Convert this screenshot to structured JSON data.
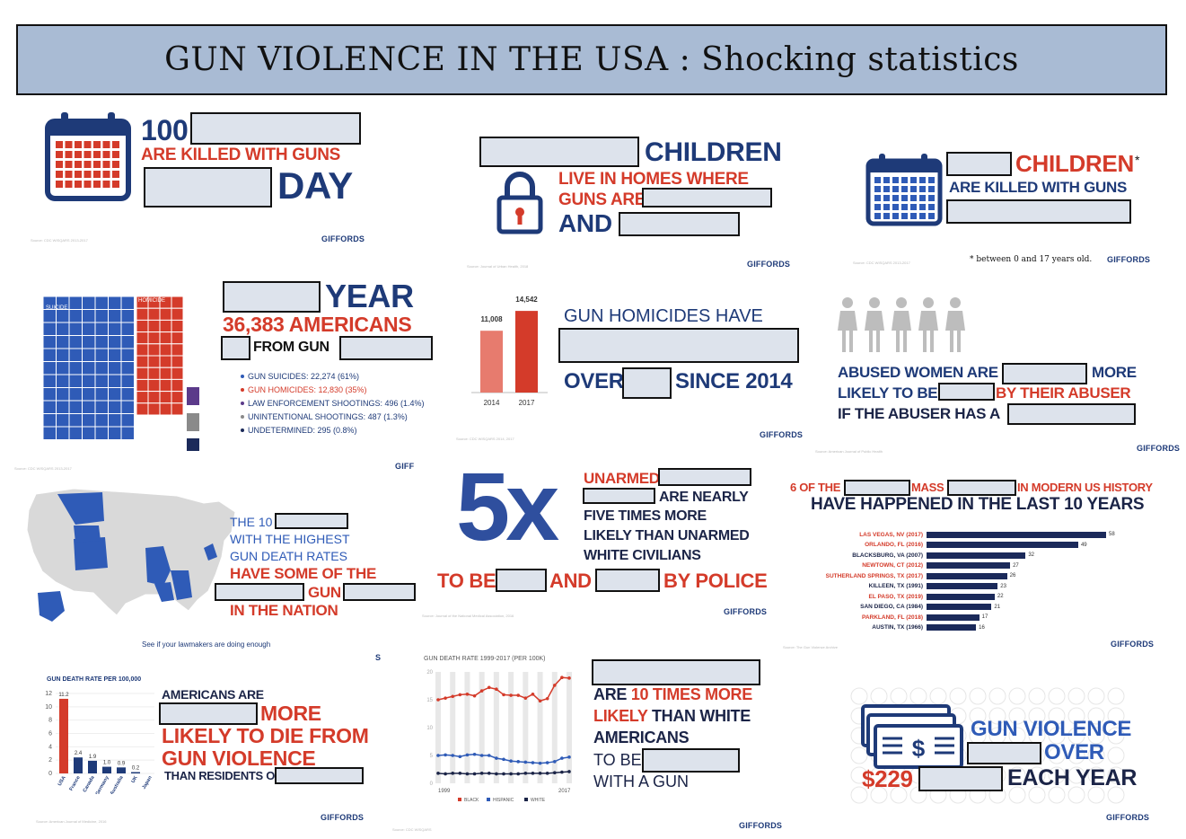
{
  "title": "GUN VIOLENCE IN THE USA : Shocking statistics",
  "brand": "GIFFORDS",
  "brand_cut": "GIFF",
  "colors": {
    "navy": "#1e3a78",
    "red": "#d43b2a",
    "dark": "#1b2447",
    "blank": "#dde3ec",
    "title_bg": "#a9bbd4"
  },
  "panel1": {
    "number": "100",
    "killed": "ARE KILLED WITH GUNS",
    "day": "DAY",
    "source": "Source: CDC WISQARS 2013-2017",
    "icon": "calendar-icon"
  },
  "panel2": {
    "children": "CHILDREN",
    "line1": "LIVE IN HOMES WHERE",
    "line2": "GUNS ARE",
    "and": "AND",
    "source": "Source: Journal of Urban Health, 2018",
    "icon": "padlock-icon"
  },
  "panel3": {
    "children": "CHILDREN",
    "asterisk": "*",
    "killed": "ARE KILLED WITH GUNS",
    "footnote": "* between 0 and 17 years old.",
    "source": "Source: CDC WISQARS 2013-2017",
    "icon": "calendar-icon"
  },
  "panel4": {
    "year": "YEAR",
    "americans": "36,383 AMERICANS",
    "from_gun": "FROM GUN",
    "suicide_label": "SUICIDE",
    "homicide_label": "HOMICIDE",
    "legend": [
      {
        "text": "GUN SUICIDES: 22,274 (61%)",
        "color": "#2f5bb7"
      },
      {
        "text": "GUN HOMICIDES: 12,830 (35%)",
        "color": "#d43b2a"
      },
      {
        "text": "LAW ENFORCEMENT SHOOTINGS: 496 (1.4%)",
        "color": "#5b3a8a"
      },
      {
        "text": "UNINTENTIONAL SHOOTINGS: 487 (1.3%)",
        "color": "#8a8a8a"
      },
      {
        "text": "UNDETERMINED: 295 (0.8%)",
        "color": "#1b2a5a"
      }
    ],
    "source": "Source: CDC WISQARS 2013-2017"
  },
  "panel5": {
    "heading": "GUN HOMICIDES HAVE",
    "over": "OVER",
    "since": "SINCE 2014",
    "source": "Source: CDC WISQARS 2014, 2017",
    "chart_data": {
      "type": "bar",
      "categories": [
        "2014",
        "2017"
      ],
      "values": [
        11008,
        14542
      ],
      "value_labels": [
        "11,008",
        "14,542"
      ]
    }
  },
  "panel6": {
    "line1a": "ABUSED WOMEN ARE",
    "line1b": "MORE",
    "line2a": "LIKELY TO BE",
    "line2b": "BY THEIR ABUSER",
    "line3": "IF THE ABUSER HAS A",
    "source": "Source: American Journal of Public Health",
    "icon": "woman-icon"
  },
  "panel7": {
    "line1": "THE 10",
    "line2": "WITH THE HIGHEST",
    "line3": "GUN DEATH RATES",
    "line4": "HAVE SOME OF THE",
    "gun": "GUN",
    "line6": "IN THE NATION",
    "cta": "See if your lawmakers are doing enough",
    "source": "Source: CDC WISQARS 2013-2017",
    "cut": "S"
  },
  "panel8": {
    "big": "5x",
    "unarmed": "UNARMED",
    "are_nearly": "ARE NEARLY",
    "five_times": "FIVE TIMES MORE",
    "likely": "LIKELY THAN UNARMED",
    "white": "WHITE CIVILIANS",
    "to_be": "TO BE",
    "and": "AND",
    "by_police": "BY POLICE",
    "source": "Source: Journal of the National Medical Association, 2016"
  },
  "panel9": {
    "line1a": "6 OF THE",
    "line1b": "MASS",
    "line1c": "IN MODERN US HISTORY",
    "line2": "HAVE HAPPENED IN THE LAST 10 YEARS",
    "source": "Source: The Gun Violence Archive",
    "chart_data": {
      "type": "bar",
      "orientation": "horizontal",
      "categories": [
        "LAS VEGAS, NV (2017)",
        "ORLANDO, FL (2016)",
        "BLACKSBURG, VA (2007)",
        "NEWTOWN, CT (2012)",
        "SUTHERLAND SPRINGS, TX (2017)",
        "KILLEEN, TX (1991)",
        "EL PASO, TX (2019)",
        "SAN DIEGO, CA (1984)",
        "PARKLAND, FL (2018)",
        "AUSTIN, TX (1966)"
      ],
      "values": [
        58,
        49,
        32,
        27,
        26,
        23,
        22,
        21,
        17,
        16
      ],
      "recent": [
        true,
        true,
        false,
        true,
        true,
        false,
        true,
        false,
        true,
        false
      ]
    }
  },
  "panel10": {
    "chart_title": "GUN DEATH RATE PER 100,000",
    "americans_are": "AMERICANS ARE",
    "more": "MORE",
    "likely_die": "LIKELY TO DIE FROM",
    "gun_violence": "GUN VIOLENCE",
    "than": "THAN RESIDENTS OF",
    "source": "Source: American Journal of Medicine, 2016",
    "chart_data": {
      "type": "bar",
      "categories": [
        "USA",
        "France",
        "Canada",
        "Germany",
        "Australia",
        "UK",
        "Japan"
      ],
      "values": [
        11.2,
        2.4,
        1.9,
        1.0,
        0.9,
        0.2,
        0
      ],
      "value_labels": [
        "11.2",
        "2.4",
        "1.9",
        "1.0",
        "0.9",
        "0.2",
        ""
      ],
      "yticks": [
        "0",
        "2",
        "4",
        "6",
        "8",
        "10",
        "12"
      ],
      "ylim": [
        0,
        12
      ]
    }
  },
  "panel11": {
    "chart_title": "GUN DEATH RATE 1999-2017 (PER 100K)",
    "x_start": "1999",
    "x_end": "2017",
    "legend": [
      "BLACK",
      "HISPANIC",
      "WHITE"
    ],
    "source": "Source: CDC WISQARS",
    "chart_data": {
      "type": "line",
      "ylim": [
        0,
        20
      ],
      "yticks": [
        "0",
        "5",
        "10",
        "15",
        "20"
      ],
      "series": [
        {
          "name": "BLACK",
          "color": "#d43b2a",
          "values": [
            15.0,
            15.3,
            15.6,
            15.9,
            16.0,
            15.7,
            16.6,
            17.2,
            16.9,
            15.9,
            15.8,
            15.8,
            15.3,
            16.0,
            14.8,
            15.2,
            17.6,
            19.0,
            18.9
          ]
        },
        {
          "name": "HISPANIC",
          "color": "#2f5bb7",
          "values": [
            5.0,
            5.1,
            5.0,
            4.8,
            5.1,
            5.2,
            5.0,
            5.0,
            4.5,
            4.3,
            4.0,
            3.9,
            3.8,
            3.7,
            3.6,
            3.7,
            3.9,
            4.5,
            4.7
          ]
        },
        {
          "name": "WHITE",
          "color": "#1b2447",
          "values": [
            1.8,
            1.7,
            1.8,
            1.8,
            1.7,
            1.7,
            1.8,
            1.8,
            1.7,
            1.7,
            1.7,
            1.7,
            1.8,
            1.8,
            1.8,
            1.8,
            1.9,
            2.0,
            2.1
          ]
        }
      ]
    },
    "are": "ARE",
    "ten_times": "10 TIMES MORE",
    "likely": "LIKELY",
    "than_white": "THAN WHITE",
    "americans": "AMERICANS",
    "to_be": "TO BE",
    "with_gun": "WITH A GUN"
  },
  "panel12": {
    "line1": "GUN VIOLENCE",
    "over": "OVER",
    "amount": "$229",
    "each_year": "EACH YEAR",
    "icon": "money-icon",
    "dollar": "$"
  }
}
